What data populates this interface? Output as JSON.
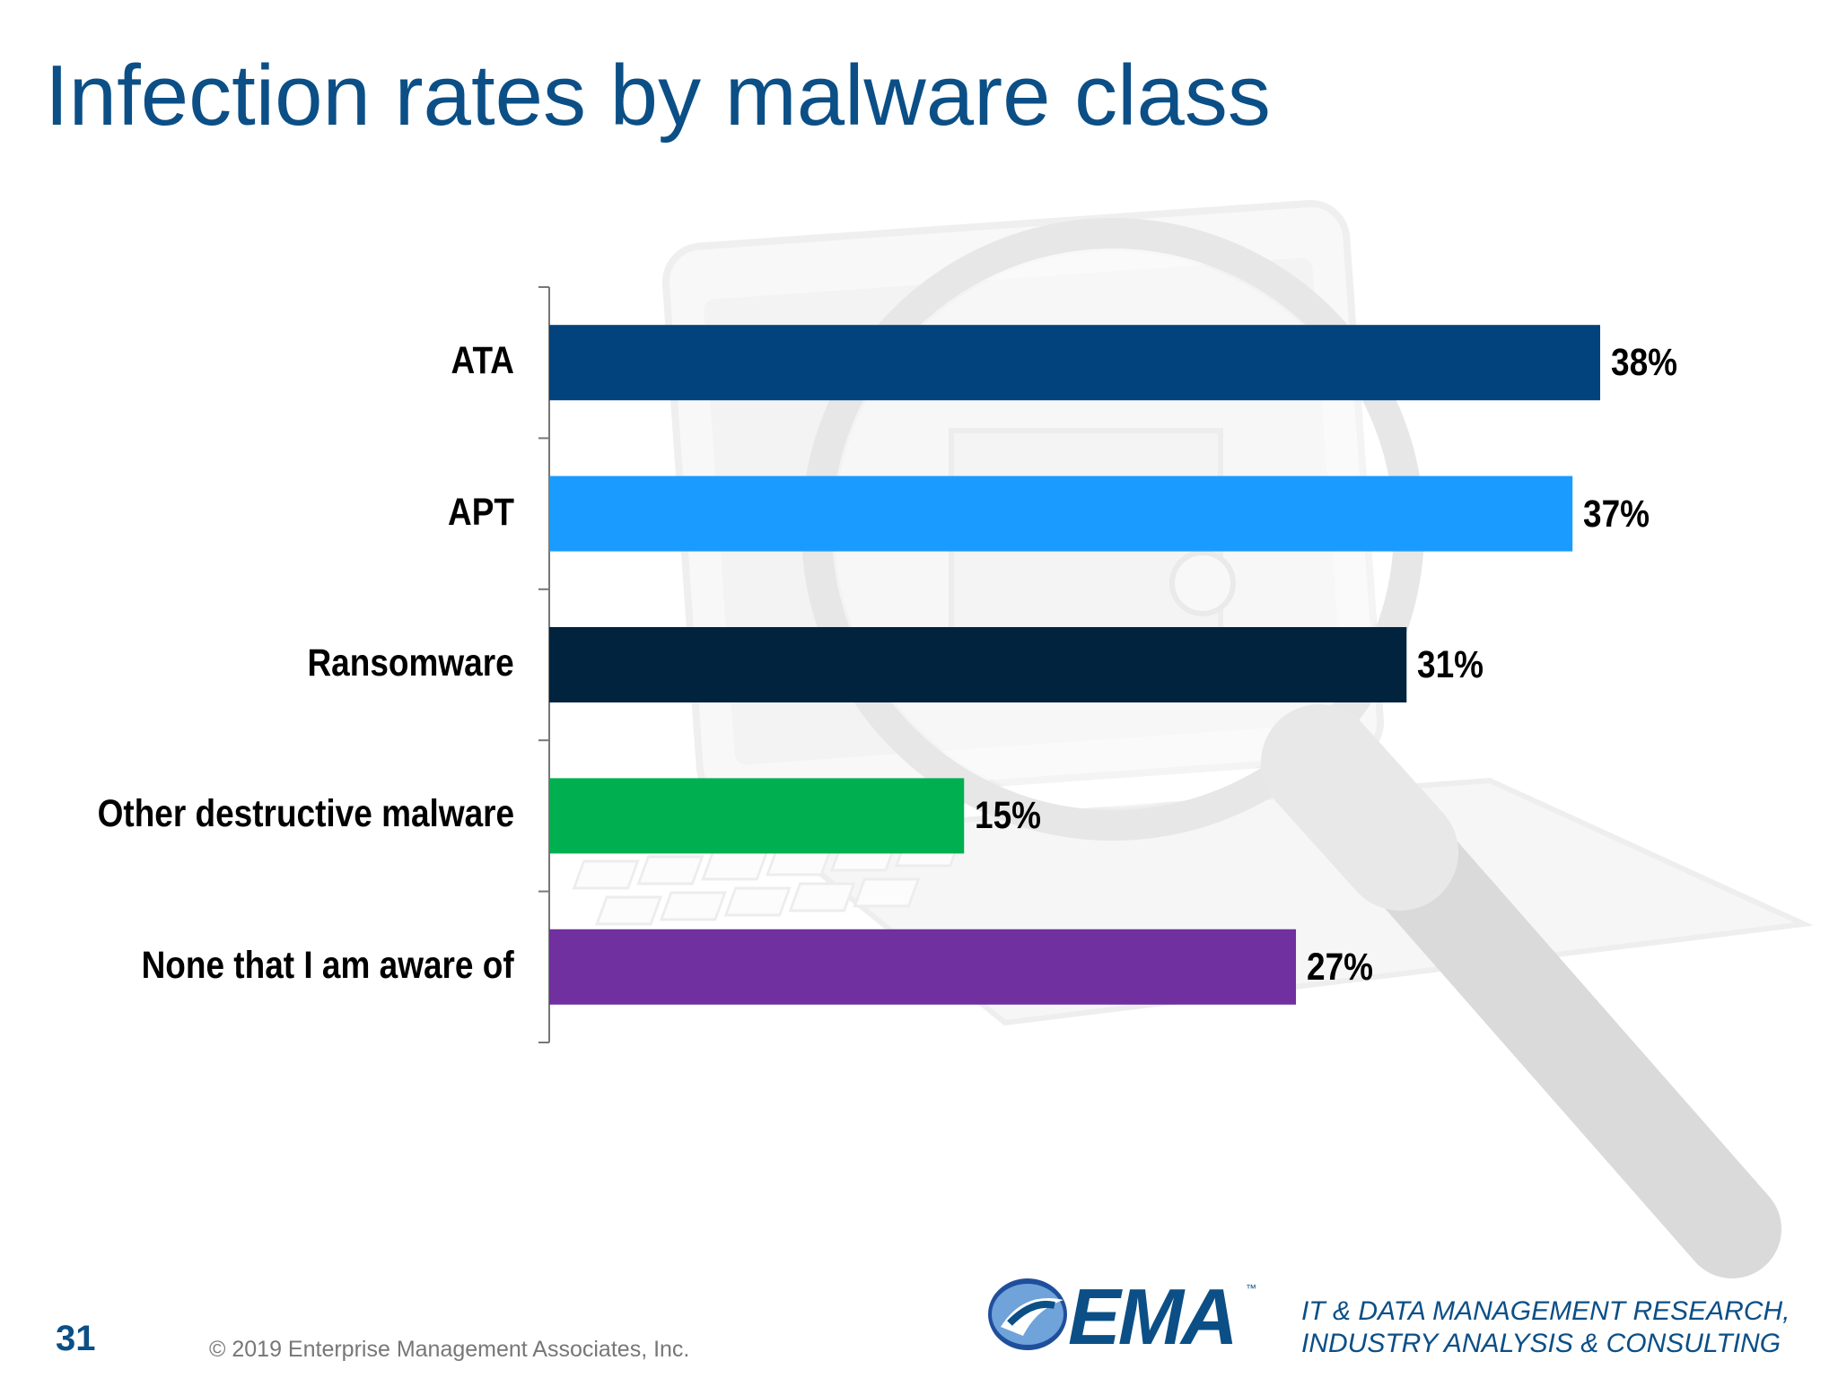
{
  "slide": {
    "title": "Infection rates by malware class",
    "page_number": "31",
    "copyright": "© 2019 Enterprise Management Associates, Inc."
  },
  "footer": {
    "logo_text": "EMA",
    "logo_tm": "™",
    "tagline_line1": "IT & DATA MANAGEMENT RESEARCH,",
    "tagline_line2": "INDUSTRY ANALYSIS & CONSULTING"
  },
  "chart_data": {
    "type": "bar",
    "orientation": "horizontal",
    "title": "Infection rates by malware class",
    "categories": [
      "ATA",
      "APT",
      "Ransomware",
      "Other destructive malware",
      "None that I am aware of"
    ],
    "values": [
      38,
      37,
      31,
      15,
      27
    ],
    "value_labels": [
      "38%",
      "37%",
      "31%",
      "15%",
      "27%"
    ],
    "colors": [
      "#02437d",
      "#1a9bff",
      "#01233e",
      "#00b050",
      "#7030a0"
    ],
    "xlim": [
      0,
      45
    ],
    "grid": false,
    "legend": "none"
  }
}
